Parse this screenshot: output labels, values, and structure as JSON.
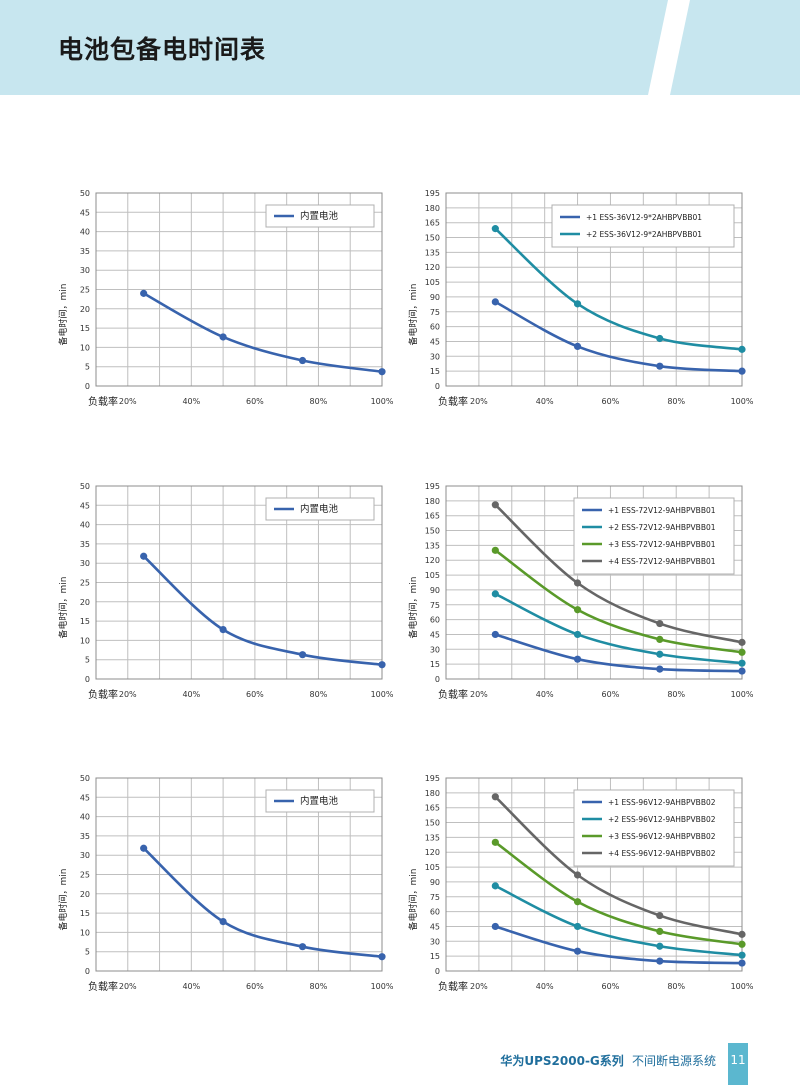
{
  "header": {
    "title": "电池包备电时间表"
  },
  "footer": {
    "brand": "华为UPS2000-G系列",
    "subtitle": "不间断电源系统",
    "page_number": "11"
  },
  "colors": {
    "blue": "#3863ad",
    "teal": "#1f8da3",
    "green": "#5a9a2a",
    "gray": "#666666",
    "grid": "#bfbfbf",
    "header_band": "#c7e6ef",
    "accent": "#5bb7cf"
  },
  "chart_data": [
    {
      "type": "line",
      "ylabel": "备电时间，min",
      "xlabel": "负载率",
      "x_tick_labels": [
        "20%",
        "40%",
        "60%",
        "80%",
        "100%"
      ],
      "ylim": [
        0,
        50
      ],
      "y_ticks": [
        0,
        5,
        10,
        15,
        20,
        25,
        30,
        35,
        40,
        45,
        50
      ],
      "grid": true,
      "legend_position": "top-right",
      "x": [
        25,
        50,
        75,
        100
      ],
      "series": [
        {
          "name": "内置电池",
          "color": "blue",
          "values": [
            24,
            12.7,
            6.6,
            3.7
          ]
        }
      ]
    },
    {
      "type": "line",
      "ylabel": "备电时间，min",
      "xlabel": "负载率",
      "x_tick_labels": [
        "20%",
        "40%",
        "60%",
        "80%",
        "100%"
      ],
      "ylim": [
        0,
        195
      ],
      "y_ticks": [
        0,
        15,
        30,
        45,
        60,
        75,
        90,
        105,
        120,
        135,
        150,
        165,
        180,
        195
      ],
      "grid": true,
      "legend_position": "top-right",
      "x": [
        25,
        50,
        75,
        100
      ],
      "series": [
        {
          "name": "+1 ESS-36V12-9*2AHBPVBB01",
          "color": "blue",
          "values": [
            85,
            40,
            20,
            15
          ]
        },
        {
          "name": "+2 ESS-36V12-9*2AHBPVBB01",
          "color": "teal",
          "values": [
            159,
            83,
            48,
            37
          ]
        }
      ]
    },
    {
      "type": "line",
      "ylabel": "备电时间，min",
      "xlabel": "负载率",
      "x_tick_labels": [
        "20%",
        "40%",
        "60%",
        "80%",
        "100%"
      ],
      "ylim": [
        0,
        50
      ],
      "y_ticks": [
        0,
        5,
        10,
        15,
        20,
        25,
        30,
        35,
        40,
        45,
        50
      ],
      "grid": true,
      "legend_position": "top-right",
      "x": [
        25,
        50,
        75,
        100
      ],
      "series": [
        {
          "name": "内置电池",
          "color": "blue",
          "values": [
            31.8,
            12.8,
            6.3,
            3.7
          ]
        }
      ]
    },
    {
      "type": "line",
      "ylabel": "备电时间，min",
      "xlabel": "负载率",
      "x_tick_labels": [
        "20%",
        "40%",
        "60%",
        "80%",
        "100%"
      ],
      "ylim": [
        0,
        195
      ],
      "y_ticks": [
        0,
        15,
        30,
        45,
        60,
        75,
        90,
        105,
        120,
        135,
        150,
        165,
        180,
        195
      ],
      "grid": true,
      "legend_position": "top-right",
      "x": [
        25,
        50,
        75,
        100
      ],
      "series": [
        {
          "name": "+1 ESS-72V12-9AHBPVBB01",
          "color": "blue",
          "values": [
            45,
            20,
            10,
            8
          ]
        },
        {
          "name": "+2 ESS-72V12-9AHBPVBB01",
          "color": "teal",
          "values": [
            86,
            45,
            25,
            16
          ]
        },
        {
          "name": "+3 ESS-72V12-9AHBPVBB01",
          "color": "green",
          "values": [
            130,
            70,
            40,
            27
          ]
        },
        {
          "name": "+4 ESS-72V12-9AHBPVBB01",
          "color": "gray",
          "values": [
            176,
            97,
            56,
            37
          ]
        }
      ]
    },
    {
      "type": "line",
      "ylabel": "备电时间，min",
      "xlabel": "负载率",
      "x_tick_labels": [
        "20%",
        "40%",
        "60%",
        "80%",
        "100%"
      ],
      "ylim": [
        0,
        50
      ],
      "y_ticks": [
        0,
        5,
        10,
        15,
        20,
        25,
        30,
        35,
        40,
        45,
        50
      ],
      "grid": true,
      "legend_position": "top-right",
      "x": [
        25,
        50,
        75,
        100
      ],
      "series": [
        {
          "name": "内置电池",
          "color": "blue",
          "values": [
            31.8,
            12.8,
            6.3,
            3.7
          ]
        }
      ]
    },
    {
      "type": "line",
      "ylabel": "备电时间，min",
      "xlabel": "负载率",
      "x_tick_labels": [
        "20%",
        "40%",
        "60%",
        "80%",
        "100%"
      ],
      "ylim": [
        0,
        195
      ],
      "y_ticks": [
        0,
        15,
        30,
        45,
        60,
        75,
        90,
        105,
        120,
        135,
        150,
        165,
        180,
        195
      ],
      "grid": true,
      "legend_position": "top-right",
      "x": [
        25,
        50,
        75,
        100
      ],
      "series": [
        {
          "name": "+1 ESS-96V12-9AHBPVBB02",
          "color": "blue",
          "values": [
            45,
            20,
            10,
            8
          ]
        },
        {
          "name": "+2 ESS-96V12-9AHBPVBB02",
          "color": "teal",
          "values": [
            86,
            45,
            25,
            16
          ]
        },
        {
          "name": "+3 ESS-96V12-9AHBPVBB02",
          "color": "green",
          "values": [
            130,
            70,
            40,
            27
          ]
        },
        {
          "name": "+4 ESS-96V12-9AHBPVBB02",
          "color": "gray",
          "values": [
            176,
            97,
            56,
            37
          ]
        }
      ]
    }
  ]
}
